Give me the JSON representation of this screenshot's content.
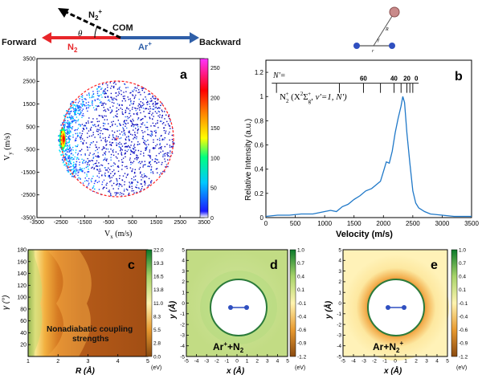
{
  "schematic": {
    "forward": "Forward",
    "backward": "Backward",
    "com": "COM",
    "n2": "N",
    "n2_sub": "2",
    "ar": "Ar",
    "ion_charge": "+",
    "theta": "θ",
    "r_label": "R",
    "gamma_label": "γ",
    "small_r": "r"
  },
  "panel_a": {
    "letter": "a",
    "xlabel_main": "V",
    "xlabel_sub": "x",
    "xlabel_unit": " (m/s)",
    "ylabel_main": "V",
    "ylabel_sub": "y",
    "ylabel_unit": " (m/s)",
    "xticks": [
      "-3500",
      "-2500",
      "-1500",
      "-500",
      "500",
      "1500",
      "2500",
      "3500"
    ],
    "yticks": [
      "3500",
      "2500",
      "1500",
      "500",
      "-500",
      "-1500",
      "-2500",
      "-3500"
    ],
    "colorbar_ticks": [
      "250",
      "200",
      "150",
      "100",
      "50",
      "0"
    ]
  },
  "panel_b": {
    "letter": "b",
    "xlabel": "Velocity (m/s)",
    "ylabel": "Relative Intensity (a.u.)",
    "xticks": [
      "0",
      "500",
      "1000",
      "1500",
      "2000",
      "2500",
      "3000",
      "3500"
    ],
    "yticks": [
      "0",
      "0.2",
      "0.4",
      "0.6",
      "0.8",
      "1",
      "1.2"
    ],
    "nprime_label": "N'=",
    "comb_labels": [
      "60",
      "40",
      "20",
      "0"
    ],
    "species": "N",
    "species_sub": "2",
    "species_sup": "+",
    "state_open": " (X",
    "state_sup": "2",
    "state_sigma": "Σ",
    "state_g": "g",
    "state_gplus": "+",
    "state_rest": ", v'=1,  N')",
    "chart_data": {
      "type": "line",
      "xlabel": "Velocity (m/s)",
      "ylabel": "Relative Intensity (a.u.)",
      "xlim": [
        0,
        3500
      ],
      "ylim": [
        0,
        1.3
      ],
      "x": [
        0,
        200,
        400,
        600,
        800,
        1000,
        1100,
        1200,
        1300,
        1400,
        1500,
        1600,
        1700,
        1800,
        1900,
        1950,
        2000,
        2050,
        2100,
        2150,
        2200,
        2250,
        2300,
        2330,
        2360,
        2400,
        2450,
        2500,
        2550,
        2600,
        2700,
        2800,
        3000,
        3200,
        3500
      ],
      "y": [
        0.01,
        0.02,
        0.02,
        0.03,
        0.03,
        0.05,
        0.06,
        0.05,
        0.09,
        0.11,
        0.15,
        0.18,
        0.22,
        0.24,
        0.28,
        0.3,
        0.38,
        0.46,
        0.45,
        0.55,
        0.7,
        0.82,
        0.92,
        1.0,
        0.95,
        0.7,
        0.45,
        0.22,
        0.12,
        0.08,
        0.05,
        0.03,
        0.02,
        0.01,
        0.01
      ]
    }
  },
  "panel_c": {
    "letter": "c",
    "xlabel": "R (Å)",
    "ylabel": "γ (°)",
    "xticks": [
      "1",
      "2",
      "3",
      "4",
      "5"
    ],
    "yticks": [
      "180",
      "160",
      "140",
      "120",
      "100",
      "80",
      "60",
      "40",
      "20"
    ],
    "colorbar_ticks": [
      "22.0",
      "19.3",
      "16.5",
      "13.8",
      "11.0",
      "8.3",
      "5.5",
      "2.8",
      "0.0"
    ],
    "unit": "(eV)",
    "annotation_line1": "Nonadiabatic coupling",
    "annotation_line2": "strengths"
  },
  "panel_d": {
    "letter": "d",
    "xlabel": "x (Å)",
    "ylabel": "y (Å)",
    "xticks": [
      "-5",
      "-4",
      "-3",
      "-2",
      "-1",
      "0",
      "1",
      "2",
      "3",
      "4",
      "5"
    ],
    "yticks": [
      "5",
      "4",
      "3",
      "2",
      "1",
      "0",
      "-1",
      "-2",
      "-3",
      "-4",
      "-5"
    ],
    "colorbar_ticks": [
      "1.0",
      "0.7",
      "0.4",
      "0.1",
      "-0.1",
      "-0.4",
      "-0.6",
      "-0.9",
      "-1.2"
    ],
    "unit": "(eV)",
    "label_a": "Ar",
    "label_sup": "+",
    "label_b": "+N",
    "label_sub": "2"
  },
  "panel_e": {
    "letter": "e",
    "xlabel": "x (Å)",
    "ylabel": "y (Å)",
    "xticks": [
      "-5",
      "-4",
      "-3",
      "-2",
      "-1",
      "0",
      "1",
      "2",
      "3",
      "4",
      "5"
    ],
    "yticks": [
      "5",
      "4",
      "3",
      "2",
      "1",
      "0",
      "-1",
      "-2",
      "-3",
      "-4",
      "-5"
    ],
    "colorbar_ticks": [
      "1.0",
      "0.7",
      "0.4",
      "0.1",
      "-0.1",
      "-0.4",
      "-0.6",
      "-0.9",
      "-1.2"
    ],
    "unit": "(eV)",
    "label_a": "Ar+N",
    "label_sub": "2",
    "label_sup": "+"
  }
}
